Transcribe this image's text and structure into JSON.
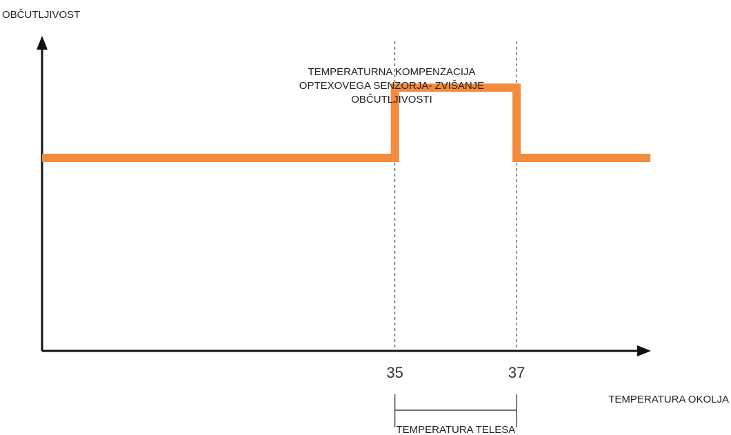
{
  "chart_data": {
    "type": "line",
    "ylabel": "OBČUTLJIVOST",
    "xlabel": "TEMPERATURA OKOLJA",
    "annotation_lines": [
      "TEMPERATURNA KOMPENZACIJA",
      "OPTEXOVEGA SENZORJA- ZVIŠANJE",
      "OBČUTLJIVOSTI"
    ],
    "range_label": "TEMPERATURA TELESA",
    "xticks": [
      "35",
      "37"
    ],
    "xlim": [
      29.2,
      39.3
    ],
    "ylim": [
      0,
      1
    ],
    "series": [
      {
        "x": [
          29.2,
          35,
          35,
          37,
          37,
          39.2
        ],
        "y": [
          0.55,
          0.55,
          0.75,
          0.75,
          0.55,
          0.55
        ],
        "color": "#f28c3c"
      }
    ],
    "markers": [
      35,
      37
    ],
    "range": [
      35,
      37
    ],
    "grid": false,
    "legend": "none"
  }
}
